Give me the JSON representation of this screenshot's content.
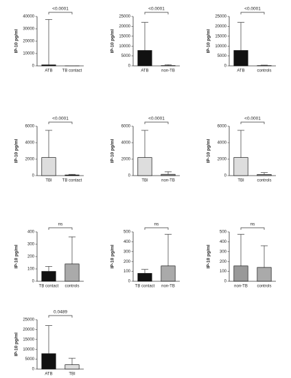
{
  "chart_data": [
    {
      "type": "bar",
      "y_label": "IP-10 pg/ml",
      "annotation": "<0.0001",
      "categories": [
        "ATB",
        "TB contact"
      ],
      "values": [
        800,
        20
      ],
      "errors": [
        36700,
        30
      ],
      "colors": [
        "#111111",
        "#111111"
      ],
      "ylim": [
        0,
        40000
      ],
      "yticks": [
        0,
        10000,
        20000,
        30000,
        40000
      ]
    },
    {
      "type": "bar",
      "y_label": "IP-10 pg/ml",
      "annotation": "<0.0001",
      "categories": [
        "ATB",
        "non-TB"
      ],
      "values": [
        7800,
        150
      ],
      "errors": [
        14200,
        450
      ],
      "colors": [
        "#111111",
        "#999999"
      ],
      "ylim": [
        0,
        25000
      ],
      "yticks": [
        0,
        5000,
        10000,
        15000,
        20000,
        25000
      ]
    },
    {
      "type": "bar",
      "y_label": "IP-10 pg/ml",
      "annotation": "<0.0001",
      "categories": [
        "ATB",
        "controls"
      ],
      "values": [
        7800,
        140
      ],
      "errors": [
        14200,
        220
      ],
      "colors": [
        "#111111",
        "#aaaaaa"
      ],
      "ylim": [
        0,
        25000
      ],
      "yticks": [
        0,
        5000,
        10000,
        15000,
        20000,
        25000
      ]
    },
    {
      "type": "bar",
      "y_label": "IP-10 pg/ml",
      "annotation": "<0.0001",
      "categories": [
        "TBI",
        "TB contact"
      ],
      "values": [
        2200,
        80
      ],
      "errors": [
        3300,
        70
      ],
      "colors": [
        "#dddddd",
        "#111111"
      ],
      "ylim": [
        0,
        6000
      ],
      "yticks": [
        0,
        2000,
        4000,
        6000
      ]
    },
    {
      "type": "bar",
      "y_label": "IP-10 pg/ml",
      "annotation": "<0.0001",
      "categories": [
        "TBI",
        "non-TB"
      ],
      "values": [
        2200,
        155
      ],
      "errors": [
        3300,
        320
      ],
      "colors": [
        "#dddddd",
        "#999999"
      ],
      "ylim": [
        0,
        6000
      ],
      "yticks": [
        0,
        2000,
        4000,
        6000
      ]
    },
    {
      "type": "bar",
      "y_label": "IP-10 pg/ml",
      "annotation": "<0.0001",
      "categories": [
        "TBI",
        "controls"
      ],
      "values": [
        2200,
        140
      ],
      "errors": [
        3300,
        220
      ],
      "colors": [
        "#dddddd",
        "#aaaaaa"
      ],
      "ylim": [
        0,
        6000
      ],
      "yticks": [
        0,
        2000,
        4000,
        6000
      ]
    },
    {
      "type": "bar",
      "y_label": "IP-10 pg/ml",
      "annotation": "ns",
      "categories": [
        "TB contact",
        "controls"
      ],
      "values": [
        80,
        140
      ],
      "errors": [
        40,
        220
      ],
      "colors": [
        "#111111",
        "#aaaaaa"
      ],
      "ylim": [
        0,
        400
      ],
      "yticks": [
        0,
        100,
        200,
        300,
        400
      ]
    },
    {
      "type": "bar",
      "y_label": "IP-10 pg/ml",
      "annotation": "ns",
      "categories": [
        "TB contact",
        "non-TB"
      ],
      "values": [
        80,
        155
      ],
      "errors": [
        40,
        320
      ],
      "colors": [
        "#111111",
        "#aaaaaa"
      ],
      "ylim": [
        0,
        500
      ],
      "yticks": [
        0,
        100,
        200,
        300,
        400,
        500
      ]
    },
    {
      "type": "bar",
      "y_label": "IP-10 pg/ml",
      "annotation": "ns",
      "categories": [
        "non-TB",
        "controls"
      ],
      "values": [
        155,
        140
      ],
      "errors": [
        320,
        220
      ],
      "colors": [
        "#999999",
        "#aaaaaa"
      ],
      "ylim": [
        0,
        500
      ],
      "yticks": [
        0,
        100,
        200,
        300,
        400,
        500
      ]
    },
    {
      "type": "bar",
      "y_label": "IP-10 pg/ml",
      "annotation": "0.0489",
      "categories": [
        "ATB",
        "TBI"
      ],
      "values": [
        7800,
        2200
      ],
      "errors": [
        14200,
        3300
      ],
      "colors": [
        "#111111",
        "#dddddd"
      ],
      "ylim": [
        0,
        25000
      ],
      "yticks": [
        0,
        5000,
        10000,
        15000,
        20000,
        25000
      ]
    }
  ]
}
